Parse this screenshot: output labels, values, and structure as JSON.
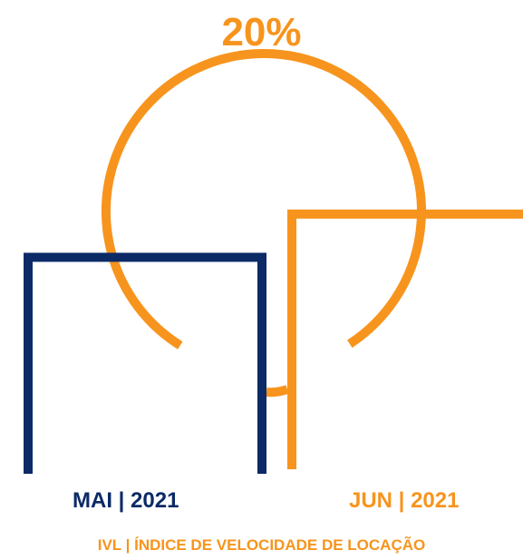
{
  "chart_data": {
    "type": "bar",
    "title": "IVL | ÍNDICE DE VELOCIDADE DE LOCAÇÃO",
    "categories": [
      "MAI | 2021",
      "JUN | 2021"
    ],
    "annotation": "20%",
    "change_percent": 20,
    "relative_values": [
      1.0,
      1.2
    ],
    "ylim": [
      0,
      1.3
    ],
    "grid": false,
    "legend": "none",
    "colors": {
      "MAI | 2021": "#0b2a66",
      "JUN | 2021": "#f7941d",
      "annotation": "#f7941d",
      "caption": "#f7941d"
    }
  }
}
